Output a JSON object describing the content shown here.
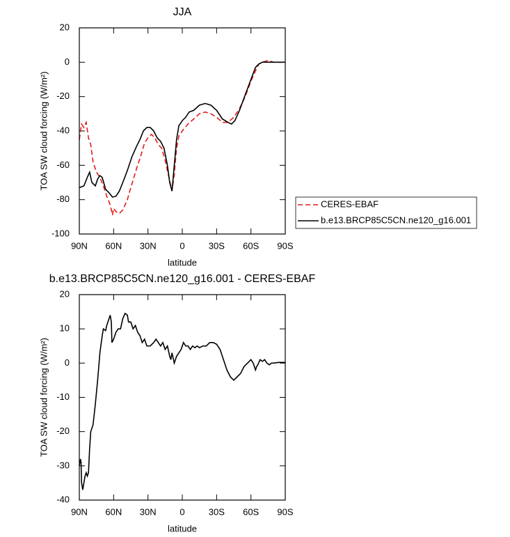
{
  "chart_data": [
    {
      "type": "line",
      "title": "JJA",
      "xlabel": "latitude",
      "ylabel": "TOA SW cloud forcing (W/m²)",
      "xlim": [
        90,
        -90
      ],
      "xticks": [
        {
          "value": 90,
          "label": "90N"
        },
        {
          "value": 60,
          "label": "60N"
        },
        {
          "value": 30,
          "label": "30N"
        },
        0,
        {
          "value": -30,
          "label": "30S"
        },
        {
          "value": -60,
          "label": "60S"
        },
        {
          "value": -90,
          "label": "90S"
        }
      ],
      "ylim": [
        -100,
        20
      ],
      "yticks": [
        -100,
        -80,
        -60,
        -40,
        -20,
        0,
        20
      ],
      "legend": "right",
      "series": [
        {
          "name": "CERES-EBAF",
          "color": "#e41a1c",
          "dash": "dashed",
          "x": [
            90,
            88,
            86,
            84,
            82,
            80,
            78,
            75,
            72,
            69,
            66,
            63,
            61,
            60,
            58,
            55,
            52,
            48,
            45,
            40,
            36,
            33,
            30,
            27,
            24,
            21,
            18,
            15,
            12,
            10,
            9,
            7,
            5,
            3,
            0,
            -5,
            -10,
            -15,
            -20,
            -25,
            -30,
            -35,
            -40,
            -45,
            -50,
            -55,
            -60,
            -64,
            -67,
            -70,
            -75,
            -80,
            -90
          ],
          "values": [
            -45,
            -36,
            -38,
            -35,
            -44,
            -48,
            -58,
            -64,
            -67,
            -72,
            -78,
            -83,
            -89,
            -85,
            -87,
            -88,
            -86,
            -80,
            -73,
            -62,
            -54,
            -47,
            -44,
            -42,
            -44,
            -48,
            -50,
            -57,
            -66,
            -72,
            -75,
            -65,
            -50,
            -43,
            -40,
            -36,
            -33,
            -30,
            -29,
            -30,
            -32,
            -35,
            -35,
            -32,
            -27,
            -20,
            -11,
            -5,
            -1,
            0,
            1,
            0,
            0
          ]
        },
        {
          "name": "b.e13.BRCP85C5CN.ne120_g16.001",
          "color": "#000000",
          "dash": "solid",
          "x": [
            90,
            86,
            83,
            81,
            79,
            76,
            74,
            72,
            70,
            67,
            64,
            61,
            58,
            55,
            52,
            48,
            44,
            40,
            37,
            34,
            31,
            28,
            25,
            22,
            19,
            16,
            13,
            11,
            9,
            7,
            5,
            3,
            0,
            -3,
            -6,
            -10,
            -15,
            -20,
            -25,
            -30,
            -35,
            -40,
            -43,
            -46,
            -50,
            -55,
            -60,
            -64,
            -67,
            -70,
            -90
          ],
          "values": [
            -73,
            -72,
            -67,
            -64,
            -70,
            -72,
            -68,
            -66,
            -67,
            -74,
            -76,
            -78.5,
            -78,
            -75,
            -70,
            -63,
            -55,
            -49,
            -45,
            -40,
            -38,
            -38,
            -40,
            -44,
            -46,
            -50,
            -60,
            -70,
            -75,
            -60,
            -45,
            -37,
            -34,
            -32,
            -29,
            -28,
            -25,
            -24,
            -25,
            -28,
            -33,
            -35,
            -36,
            -34,
            -28,
            -19,
            -10,
            -3,
            -1,
            0,
            0
          ]
        }
      ]
    },
    {
      "type": "line",
      "title": "b.e13.BRCP85C5CN.ne120_g16.001 - CERES-EBAF",
      "xlabel": "latitude",
      "ylabel": "TOA SW cloud forcing (W/m²)",
      "xlim": [
        90,
        -90
      ],
      "xticks": [
        {
          "value": 90,
          "label": "90N"
        },
        {
          "value": 60,
          "label": "60N"
        },
        {
          "value": 30,
          "label": "30N"
        },
        0,
        {
          "value": -30,
          "label": "30S"
        },
        {
          "value": -60,
          "label": "60S"
        },
        {
          "value": -90,
          "label": "90S"
        }
      ],
      "ylim": [
        -40,
        20
      ],
      "yticks": [
        -40,
        -30,
        -20,
        -10,
        0,
        10,
        20
      ],
      "series": [
        {
          "color": "#000000",
          "dash": "solid",
          "x": [
            90,
            89,
            88.5,
            88,
            87,
            86,
            85,
            84,
            83,
            82,
            81,
            80,
            79,
            78,
            76,
            74,
            72,
            70,
            69,
            67,
            66,
            64,
            63,
            62,
            61.5,
            60,
            58,
            56,
            54,
            52,
            50,
            48,
            47,
            45,
            43,
            41,
            39,
            37,
            35,
            33,
            31,
            28,
            25,
            23,
            21,
            19,
            17,
            15,
            13,
            11,
            10,
            9,
            7,
            5,
            3,
            1,
            -1,
            -3,
            -5,
            -7,
            -9,
            -11,
            -13,
            -15,
            -18,
            -21,
            -24,
            -27,
            -30,
            -33,
            -36,
            -39,
            -42,
            -45,
            -48,
            -51,
            -54,
            -57,
            -60,
            -62,
            -64,
            -65,
            -66,
            -68,
            -70,
            -72,
            -74,
            -76,
            -78,
            -80,
            -84,
            -90
          ],
          "values": [
            -30,
            -28,
            -29,
            -35,
            -37,
            -35,
            -33,
            -32,
            -33,
            -32,
            -25,
            -20,
            -19,
            -18,
            -12,
            -5,
            3,
            8,
            10,
            9.5,
            11,
            13,
            14,
            12,
            6,
            7,
            9,
            10,
            10,
            13,
            14.5,
            14,
            12,
            12,
            10,
            11,
            9,
            8,
            6,
            7,
            5,
            5,
            6,
            7,
            6,
            5,
            6,
            4,
            5,
            2,
            1,
            3,
            0,
            2,
            3,
            4,
            6,
            5,
            5,
            4,
            5,
            4.5,
            5,
            4.5,
            5,
            5,
            6,
            6,
            5.5,
            4,
            1,
            -2,
            -4,
            -5,
            -4,
            -3,
            -1,
            0,
            1,
            0,
            -2,
            -1,
            -0.5,
            1,
            0.5,
            1,
            0,
            -0.5,
            0,
            0,
            0.2,
            0.2
          ]
        }
      ]
    }
  ]
}
